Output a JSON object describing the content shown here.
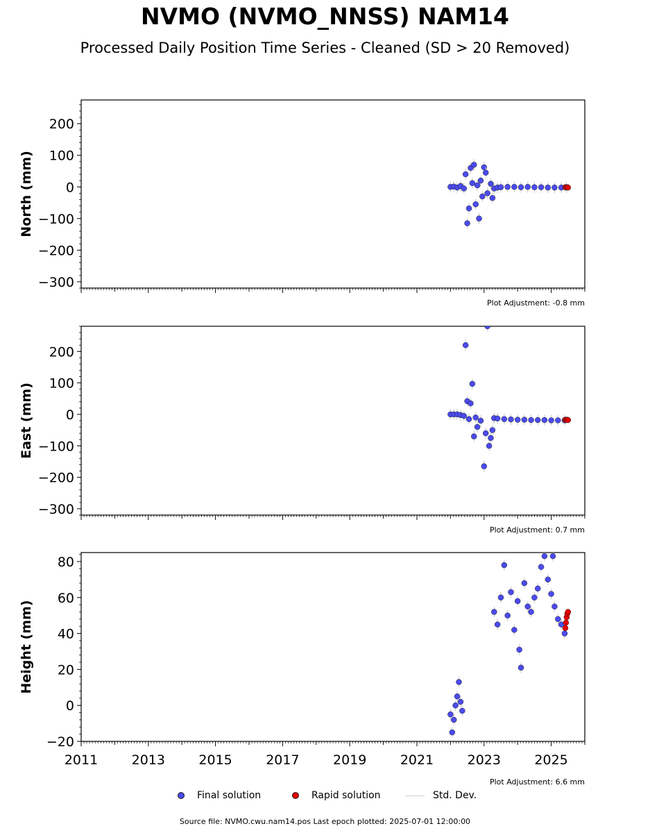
{
  "title": "NVMO (NVMO_NNSS) NAM14",
  "subtitle": "Processed Daily Position Time Series - Cleaned (SD > 20 Removed)",
  "footer": "Source file: NVMO.cwu.nam14.pos  Last epoch plotted: 2025-07-01 12:00:00",
  "colors": {
    "final": "#4b4bf0",
    "rapid": "#e60000",
    "stddev": "#c8c8c8"
  },
  "legend": {
    "final": "Final solution",
    "rapid": "Rapid solution",
    "stddev": "Std. Dev."
  },
  "chart_data": [
    {
      "type": "scatter",
      "ylabel": "North (mm)",
      "ylim": [
        -320,
        275
      ],
      "yticks": [
        -300,
        -200,
        -100,
        0,
        100,
        200
      ],
      "xlim": [
        2011.0,
        2026.0
      ],
      "adjustment": "Plot Adjustment: -0.8 mm",
      "show_xtick_labels": false,
      "series": [
        {
          "name": "Final solution",
          "x": [
            2022.0,
            2022.1,
            2022.2,
            2022.3,
            2022.4,
            2022.45,
            2022.5,
            2022.55,
            2022.6,
            2022.65,
            2022.7,
            2022.75,
            2022.8,
            2022.85,
            2022.9,
            2022.95,
            2023.0,
            2023.05,
            2023.1,
            2023.2,
            2023.25,
            2023.3,
            2023.4,
            2023.5,
            2023.7,
            2023.9,
            2024.1,
            2024.3,
            2024.5,
            2024.7,
            2024.9,
            2025.1,
            2025.3,
            2025.45
          ],
          "y": [
            0,
            1,
            -2,
            3,
            -5,
            40,
            -115,
            -68,
            60,
            12,
            70,
            -55,
            5,
            -100,
            20,
            -30,
            62,
            45,
            -20,
            10,
            -35,
            -5,
            -2,
            -1,
            0,
            0,
            -1,
            0,
            -1,
            -1,
            -2,
            -2,
            -2,
            -1
          ]
        },
        {
          "name": "Rapid solution",
          "x": [
            2025.42,
            2025.45,
            2025.48,
            2025.5
          ],
          "y": [
            -1,
            -2,
            -1,
            -2
          ]
        }
      ]
    },
    {
      "type": "scatter",
      "ylabel": "East (mm)",
      "ylim": [
        -320,
        280
      ],
      "yticks": [
        -300,
        -200,
        -100,
        0,
        100,
        200
      ],
      "xlim": [
        2011.0,
        2026.0
      ],
      "adjustment": "Plot Adjustment: 0.7 mm",
      "show_xtick_labels": false,
      "series": [
        {
          "name": "Final solution",
          "x": [
            2022.0,
            2022.1,
            2022.2,
            2022.3,
            2022.4,
            2022.45,
            2022.5,
            2022.55,
            2022.6,
            2022.65,
            2022.7,
            2022.75,
            2022.8,
            2022.9,
            2023.0,
            2023.05,
            2023.1,
            2023.15,
            2023.2,
            2023.25,
            2023.3,
            2023.4,
            2023.6,
            2023.8,
            2024.0,
            2024.2,
            2024.4,
            2024.6,
            2024.8,
            2025.0,
            2025.2,
            2025.4
          ],
          "y": [
            0,
            0,
            0,
            -2,
            -5,
            220,
            42,
            -15,
            35,
            97,
            -70,
            -10,
            -40,
            -20,
            -165,
            -60,
            280,
            -100,
            -75,
            -50,
            -12,
            -13,
            -15,
            -16,
            -17,
            -17,
            -18,
            -18,
            -18,
            -19,
            -19,
            -19
          ]
        },
        {
          "name": "Rapid solution",
          "x": [
            2025.42,
            2025.45,
            2025.48,
            2025.5
          ],
          "y": [
            -17,
            -18,
            -17,
            -18
          ]
        }
      ]
    },
    {
      "type": "scatter",
      "ylabel": "Height (mm)",
      "ylim": [
        -20,
        85
      ],
      "yticks": [
        -20,
        0,
        20,
        40,
        60,
        80
      ],
      "xlim": [
        2011.0,
        2026.0
      ],
      "xticks": [
        "2011",
        "2013",
        "2015",
        "2017",
        "2019",
        "2021",
        "2023",
        "2025"
      ],
      "adjustment": "Plot Adjustment: 6.6 mm",
      "show_xtick_labels": true,
      "series": [
        {
          "name": "Final solution",
          "x": [
            2022.0,
            2022.05,
            2022.1,
            2022.15,
            2022.2,
            2022.25,
            2022.3,
            2022.35,
            2023.3,
            2023.4,
            2023.5,
            2023.6,
            2023.7,
            2023.8,
            2023.9,
            2024.0,
            2024.05,
            2024.1,
            2024.2,
            2024.3,
            2024.4,
            2024.5,
            2024.6,
            2024.7,
            2024.8,
            2024.9,
            2025.0,
            2025.05,
            2025.1,
            2025.2,
            2025.3,
            2025.4
          ],
          "y": [
            -5,
            -15,
            -8,
            0,
            5,
            13,
            2,
            -3,
            52,
            45,
            60,
            78,
            50,
            63,
            42,
            58,
            31,
            21,
            68,
            55,
            52,
            60,
            65,
            77,
            83,
            70,
            62,
            83,
            55,
            48,
            45,
            40
          ]
        },
        {
          "name": "Rapid solution",
          "x": [
            2025.42,
            2025.44,
            2025.46,
            2025.48,
            2025.5
          ],
          "y": [
            43,
            46,
            49,
            51,
            52
          ]
        }
      ]
    }
  ]
}
